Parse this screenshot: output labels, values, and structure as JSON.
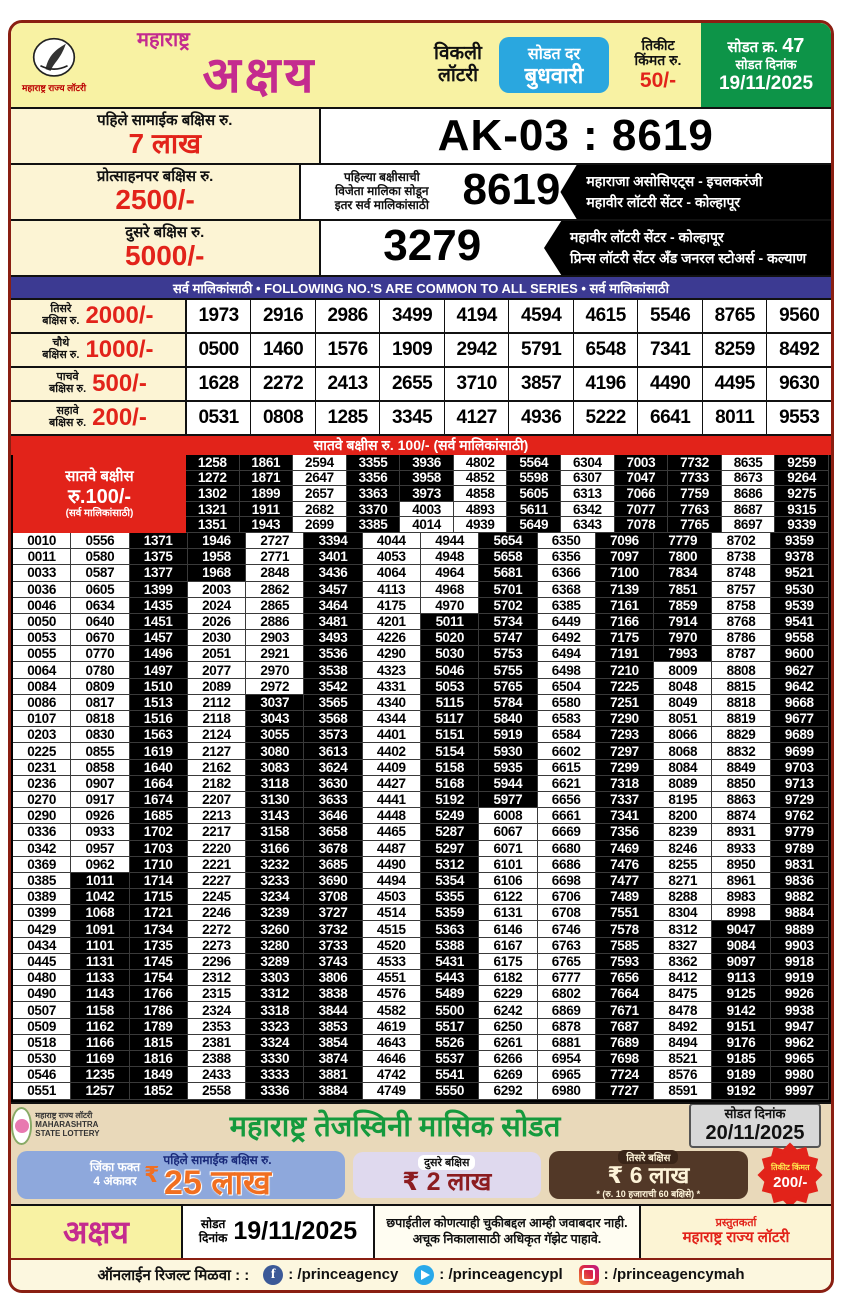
{
  "header": {
    "emblem_caption": "महाराष्ट्र राज्य लॉटरी",
    "brand_top": "महाराष्ट्र",
    "brand_main": "अक्षय",
    "weekly": "विकली लॉटरी",
    "draw_day_label": "सोडत दर",
    "draw_day": "बुधवारी",
    "ticket_label1": "तिकीट",
    "ticket_label2": "किंमत रु.",
    "ticket_price": "50/-",
    "draw_no_label": "सोडत क्र.",
    "draw_no": "47",
    "draw_date_label": "सोडत दिनांक",
    "draw_date": "19/11/2025"
  },
  "top_prizes": {
    "first": {
      "label": "पहिले सामाईक बक्षिस रु.",
      "amount": "7 लाख",
      "result": "AK-03 : 8619"
    },
    "consolation": {
      "label": "प्रोत्साहनपर बक्षिस रु.",
      "amount": "2500/-",
      "note_lines": [
        "पहिल्या बक्षीसाची",
        "विजेता मालिका सोडून",
        "इतर सर्व मालिकांसाठी"
      ],
      "result": "8619",
      "sellers": [
        "महाराजा असोसिएट्स - इचलकरंजी",
        "महावीर लॉटरी सेंटर - कोल्हापूर"
      ]
    },
    "second": {
      "label": "दुसरे बक्षिस रु.",
      "amount": "5000/-",
      "result": "3279",
      "sellers": [
        "महावीर लॉटरी सेंटर - कोल्हापूर",
        "प्रिन्स लॉटरी सेंटर अँड जनरल स्टोअर्स - कल्याण"
      ]
    }
  },
  "series_banner": "सर्व मालिकांसाठी  •  FOLLOWING NO.'S ARE COMMON TO ALL SERIES  •  सर्व मालिकांसाठी",
  "common_prizes": [
    {
      "rank_line1": "तिसरे",
      "rank_line2": "बक्षिस रु.",
      "amount": "2000/-",
      "numbers": [
        "1973",
        "2916",
        "2986",
        "3499",
        "4194",
        "4594",
        "4615",
        "5546",
        "8765",
        "9560"
      ]
    },
    {
      "rank_line1": "चौथे",
      "rank_line2": "बक्षिस रु.",
      "amount": "1000/-",
      "numbers": [
        "0500",
        "1460",
        "1576",
        "1909",
        "2942",
        "5791",
        "6548",
        "7341",
        "8259",
        "8492"
      ]
    },
    {
      "rank_line1": "पाचवे",
      "rank_line2": "बक्षिस रु.",
      "amount": "500/-",
      "numbers": [
        "1628",
        "2272",
        "2413",
        "2655",
        "3710",
        "3857",
        "4196",
        "4490",
        "4495",
        "9630"
      ]
    },
    {
      "rank_line1": "सहावे",
      "rank_line2": "बक्षिस रु.",
      "amount": "200/-",
      "numbers": [
        "0531",
        "0808",
        "1285",
        "3345",
        "4127",
        "4936",
        "5222",
        "6641",
        "8011",
        "9553"
      ]
    }
  ],
  "seventh": {
    "banner": "सातवे बक्षीस रु. 100/-  (सर्व मालिकांसाठी)",
    "label_line1": "सातवे बक्षीस",
    "label_line2": "रु.100/-",
    "label_line3": "(सर्व मालिकांसाठी)",
    "head_rows": [
      [
        "1258",
        "1861",
        "2594",
        "3355",
        "3936",
        "4802",
        "5564",
        "6304",
        "7003",
        "7732",
        "8635",
        "9259"
      ],
      [
        "1272",
        "1871",
        "2647",
        "3356",
        "3958",
        "4852",
        "5598",
        "6307",
        "7047",
        "7733",
        "8673",
        "9264"
      ],
      [
        "1302",
        "1899",
        "2657",
        "3363",
        "3973",
        "4858",
        "5605",
        "6313",
        "7066",
        "7759",
        "8686",
        "9275"
      ],
      [
        "1321",
        "1911",
        "2682",
        "3370",
        "4003",
        "4893",
        "5611",
        "6342",
        "7077",
        "7763",
        "8687",
        "9315"
      ],
      [
        "1351",
        "1943",
        "2699",
        "3385",
        "4014",
        "4939",
        "5649",
        "6343",
        "7078",
        "7765",
        "8697",
        "9339"
      ]
    ],
    "rows": [
      [
        "0010",
        "0556",
        "1371",
        "1946",
        "2727",
        "3394",
        "4044",
        "4944",
        "5654",
        "6350",
        "7096",
        "7779",
        "8702",
        "9359"
      ],
      [
        "0011",
        "0580",
        "1375",
        "1958",
        "2771",
        "3401",
        "4053",
        "4948",
        "5658",
        "6356",
        "7097",
        "7800",
        "8738",
        "9378"
      ],
      [
        "0033",
        "0587",
        "1377",
        "1968",
        "2848",
        "3436",
        "4064",
        "4964",
        "5681",
        "6366",
        "7100",
        "7834",
        "8748",
        "9521"
      ],
      [
        "0036",
        "0605",
        "1399",
        "2003",
        "2862",
        "3457",
        "4113",
        "4968",
        "5701",
        "6368",
        "7139",
        "7851",
        "8757",
        "9530"
      ],
      [
        "0046",
        "0634",
        "1435",
        "2024",
        "2865",
        "3464",
        "4175",
        "4970",
        "5702",
        "6385",
        "7161",
        "7859",
        "8758",
        "9539"
      ],
      [
        "0050",
        "0640",
        "1451",
        "2026",
        "2886",
        "3481",
        "4201",
        "5011",
        "5734",
        "6449",
        "7166",
        "7914",
        "8768",
        "9541"
      ],
      [
        "0053",
        "0670",
        "1457",
        "2030",
        "2903",
        "3493",
        "4226",
        "5020",
        "5747",
        "6492",
        "7175",
        "7970",
        "8786",
        "9558"
      ],
      [
        "0055",
        "0770",
        "1496",
        "2051",
        "2921",
        "3536",
        "4290",
        "5030",
        "5753",
        "6494",
        "7191",
        "7993",
        "8787",
        "9600"
      ],
      [
        "0064",
        "0780",
        "1497",
        "2077",
        "2970",
        "3538",
        "4323",
        "5046",
        "5755",
        "6498",
        "7210",
        "8009",
        "8808",
        "9627"
      ],
      [
        "0084",
        "0809",
        "1510",
        "2089",
        "2972",
        "3542",
        "4331",
        "5053",
        "5765",
        "6504",
        "7225",
        "8048",
        "8815",
        "9642"
      ],
      [
        "0086",
        "0817",
        "1513",
        "2112",
        "3037",
        "3565",
        "4340",
        "5115",
        "5784",
        "6580",
        "7251",
        "8049",
        "8818",
        "9668"
      ],
      [
        "0107",
        "0818",
        "1516",
        "2118",
        "3043",
        "3568",
        "4344",
        "5117",
        "5840",
        "6583",
        "7290",
        "8051",
        "8819",
        "9677"
      ],
      [
        "0203",
        "0830",
        "1563",
        "2124",
        "3055",
        "3573",
        "4401",
        "5151",
        "5919",
        "6584",
        "7293",
        "8066",
        "8829",
        "9689"
      ],
      [
        "0225",
        "0855",
        "1619",
        "2127",
        "3080",
        "3613",
        "4402",
        "5154",
        "5930",
        "6602",
        "7297",
        "8068",
        "8832",
        "9699"
      ],
      [
        "0231",
        "0858",
        "1640",
        "2162",
        "3083",
        "3624",
        "4409",
        "5158",
        "5935",
        "6615",
        "7299",
        "8084",
        "8849",
        "9703"
      ],
      [
        "0236",
        "0907",
        "1664",
        "2182",
        "3118",
        "3630",
        "4427",
        "5168",
        "5944",
        "6621",
        "7318",
        "8089",
        "8850",
        "9713"
      ],
      [
        "0270",
        "0917",
        "1674",
        "2207",
        "3130",
        "3633",
        "4441",
        "5192",
        "5977",
        "6656",
        "7337",
        "8195",
        "8863",
        "9729"
      ],
      [
        "0290",
        "0926",
        "1685",
        "2213",
        "3143",
        "3646",
        "4448",
        "5249",
        "6008",
        "6661",
        "7341",
        "8200",
        "8874",
        "9762"
      ],
      [
        "0336",
        "0933",
        "1702",
        "2217",
        "3158",
        "3658",
        "4465",
        "5287",
        "6067",
        "6669",
        "7356",
        "8239",
        "8931",
        "9779"
      ],
      [
        "0342",
        "0957",
        "1703",
        "2220",
        "3166",
        "3678",
        "4487",
        "5297",
        "6071",
        "6680",
        "7469",
        "8246",
        "8933",
        "9789"
      ],
      [
        "0369",
        "0962",
        "1710",
        "2221",
        "3232",
        "3685",
        "4490",
        "5312",
        "6101",
        "6686",
        "7476",
        "8255",
        "8950",
        "9831"
      ],
      [
        "0385",
        "1011",
        "1714",
        "2227",
        "3233",
        "3690",
        "4494",
        "5354",
        "6106",
        "6698",
        "7477",
        "8271",
        "8961",
        "9836"
      ],
      [
        "0389",
        "1042",
        "1715",
        "2245",
        "3234",
        "3708",
        "4503",
        "5355",
        "6122",
        "6706",
        "7489",
        "8288",
        "8983",
        "9882"
      ],
      [
        "0399",
        "1068",
        "1721",
        "2246",
        "3239",
        "3727",
        "4514",
        "5359",
        "6131",
        "6708",
        "7551",
        "8304",
        "8998",
        "9884"
      ],
      [
        "0429",
        "1091",
        "1734",
        "2272",
        "3260",
        "3732",
        "4515",
        "5363",
        "6146",
        "6746",
        "7578",
        "8312",
        "9047",
        "9889"
      ],
      [
        "0434",
        "1101",
        "1735",
        "2273",
        "3280",
        "3733",
        "4520",
        "5388",
        "6167",
        "6763",
        "7585",
        "8327",
        "9084",
        "9903"
      ],
      [
        "0445",
        "1131",
        "1745",
        "2296",
        "3289",
        "3743",
        "4533",
        "5431",
        "6175",
        "6765",
        "7593",
        "8362",
        "9097",
        "9918"
      ],
      [
        "0480",
        "1133",
        "1754",
        "2312",
        "3303",
        "3806",
        "4551",
        "5443",
        "6182",
        "6777",
        "7656",
        "8412",
        "9113",
        "9919"
      ],
      [
        "0490",
        "1143",
        "1766",
        "2315",
        "3312",
        "3838",
        "4576",
        "5489",
        "6229",
        "6802",
        "7664",
        "8475",
        "9125",
        "9926"
      ],
      [
        "0507",
        "1158",
        "1786",
        "2324",
        "3318",
        "3844",
        "4582",
        "5500",
        "6242",
        "6869",
        "7671",
        "8478",
        "9142",
        "9938"
      ],
      [
        "0509",
        "1162",
        "1789",
        "2353",
        "3323",
        "3853",
        "4619",
        "5517",
        "6250",
        "6878",
        "7687",
        "8492",
        "9151",
        "9947"
      ],
      [
        "0518",
        "1166",
        "1815",
        "2381",
        "3324",
        "3854",
        "4643",
        "5526",
        "6261",
        "6881",
        "7689",
        "8494",
        "9176",
        "9962"
      ],
      [
        "0530",
        "1169",
        "1816",
        "2388",
        "3330",
        "3874",
        "4646",
        "5537",
        "6266",
        "6954",
        "7698",
        "8521",
        "9185",
        "9965"
      ],
      [
        "0546",
        "1235",
        "1849",
        "2433",
        "3333",
        "3881",
        "4742",
        "5541",
        "6269",
        "6965",
        "7724",
        "8576",
        "9189",
        "9980"
      ],
      [
        "0551",
        "1257",
        "1852",
        "2558",
        "3336",
        "3884",
        "4749",
        "5550",
        "6292",
        "6980",
        "7727",
        "8591",
        "9192",
        "9997"
      ]
    ]
  },
  "monthly_ad": {
    "logo_caption1": "महाराष्ट्र राज्य लॉटरी",
    "logo_caption2": "MAHARASHTRA STATE LOTTERY",
    "title": "महाराष्ट्र तेजस्विनी मासिक सोडत",
    "draw_date_label": "सोडत दिनांक",
    "draw_date": "20/11/2025",
    "win_line1": "जिंका फक्त",
    "win_line2": "4 अंकावर",
    "rupee": "₹",
    "first_label": "पहिले सामाईक बक्षिस रु.",
    "first_amount": "25 लाख",
    "second_label": "दुसरे बक्षिस",
    "second_amount": "₹ 2 लाख",
    "third_label": "तिसरे बक्षिस",
    "third_amount": "₹ 6 लाख",
    "third_note": "* (रु. 10 हजाराची 60 बक्षिसे) *",
    "burst_label": "तिकीट किंमत",
    "burst_price": "200/-"
  },
  "imprint": {
    "brand": "अक्षय",
    "date_label1": "सोडत",
    "date_label2": "दिनांक",
    "date": "19/11/2025",
    "disclaimer_line1": "छपाईतील कोणत्याही चुकीबद्दल आम्ही जवाबदार नाही.",
    "disclaimer_line2": "अचूक निकालासाठी अधिकृत गॅझेट पाहावे.",
    "presenter_label": "प्रस्तुतकर्ता",
    "presenter": "महाराष्ट्र राज्य लॉटरी"
  },
  "social": {
    "lead": "ऑनलाईन रिजल्ट मिळवा : :",
    "items": [
      {
        "icon": "facebook",
        "label": ": /princeagency"
      },
      {
        "icon": "telegram",
        "label": ": /princeagencypl"
      },
      {
        "icon": "instagram",
        "label": ": /princeagencymah"
      }
    ]
  },
  "colors": {
    "maroon_border": "#8a1f12",
    "header_yellow": "#f8f2a3",
    "brand_magenta": "#c42b8f",
    "day_blue": "#2aa7df",
    "draw_green": "#0d9448",
    "accent_red": "#e2231a",
    "series_navy": "#3c3a92",
    "label_cream": "#fcf4d4",
    "ad_tan": "#e9d9ba",
    "ad_green": "#159a3d",
    "ad_lightblue": "#8ea8dc",
    "ad_lavender": "#dfd9ee",
    "ad_brown": "#523827",
    "ad_orange": "#f16f21",
    "ad_darkred": "#8c1c20",
    "cell_black": "#000000",
    "cell_white": "#ffffff"
  }
}
